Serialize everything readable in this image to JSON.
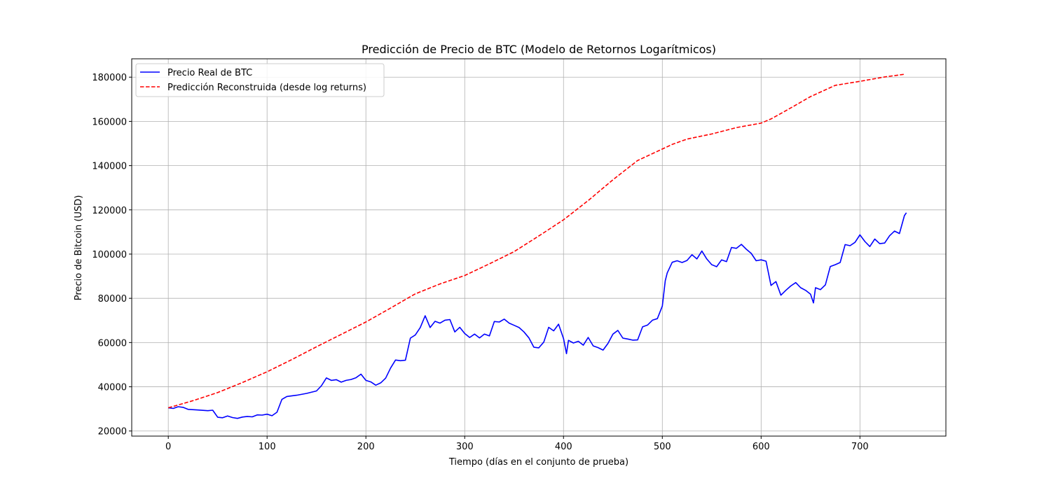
{
  "chart_data": {
    "type": "line",
    "title": "Predicción de Precio de BTC (Modelo de Retornos Logarítmicos)",
    "xlabel": "Tiempo (días en el conjunto de prueba)",
    "ylabel": "Precio de Bitcoin (USD)",
    "xlim": [
      -37,
      787
    ],
    "ylim": [
      17700,
      188300
    ],
    "xticks": [
      0,
      100,
      200,
      300,
      400,
      500,
      600,
      700
    ],
    "yticks": [
      20000,
      40000,
      60000,
      80000,
      100000,
      120000,
      140000,
      160000,
      180000
    ],
    "xtick_labels": [
      "0",
      "100",
      "200",
      "300",
      "400",
      "500",
      "600",
      "700"
    ],
    "ytick_labels": [
      "20000",
      "40000",
      "60000",
      "80000",
      "100000",
      "120000",
      "140000",
      "160000",
      "180000"
    ],
    "grid": true,
    "legend_position": "top-left",
    "series": [
      {
        "name": "Precio Real de BTC",
        "color": "#0000ff",
        "style": "solid",
        "x": [
          0,
          5,
          10,
          15,
          20,
          30,
          40,
          45,
          50,
          55,
          60,
          65,
          70,
          75,
          80,
          85,
          90,
          95,
          100,
          105,
          110,
          115,
          120,
          130,
          140,
          150,
          155,
          160,
          165,
          170,
          175,
          180,
          185,
          190,
          195,
          200,
          205,
          210,
          215,
          220,
          225,
          230,
          235,
          240,
          245,
          250,
          255,
          260,
          265,
          270,
          275,
          280,
          285,
          290,
          295,
          300,
          305,
          310,
          315,
          320,
          325,
          330,
          335,
          340,
          345,
          350,
          355,
          360,
          365,
          370,
          375,
          380,
          385,
          390,
          395,
          400,
          403,
          405,
          410,
          415,
          420,
          425,
          430,
          435,
          440,
          445,
          450,
          455,
          460,
          465,
          470,
          475,
          480,
          485,
          490,
          495,
          500,
          503,
          505,
          510,
          515,
          520,
          525,
          530,
          535,
          540,
          545,
          550,
          555,
          560,
          565,
          570,
          575,
          580,
          585,
          590,
          595,
          600,
          605,
          610,
          615,
          620,
          625,
          630,
          635,
          640,
          645,
          650,
          653,
          655,
          660,
          665,
          670,
          675,
          680,
          685,
          690,
          695,
          700,
          705,
          710,
          715,
          720,
          725,
          730,
          735,
          740,
          745,
          747
        ],
        "y": [
          30500,
          30200,
          31000,
          30700,
          29800,
          29500,
          29200,
          29400,
          26200,
          26000,
          26800,
          26100,
          25700,
          26300,
          26600,
          26400,
          27300,
          27200,
          27600,
          26900,
          28500,
          34300,
          35600,
          36200,
          37000,
          38100,
          40500,
          44000,
          42900,
          43200,
          42100,
          42900,
          43300,
          44100,
          45700,
          42900,
          42200,
          40700,
          41800,
          43900,
          48500,
          52100,
          51800,
          52000,
          62000,
          63400,
          66800,
          72100,
          66800,
          69600,
          68800,
          70100,
          70400,
          64800,
          66900,
          64100,
          62300,
          63800,
          62100,
          63800,
          63000,
          69500,
          69300,
          70600,
          68800,
          67800,
          66800,
          64800,
          62100,
          57900,
          57600,
          60200,
          66900,
          65300,
          68300,
          61800,
          55000,
          61000,
          59800,
          60600,
          58800,
          62300,
          58500,
          57700,
          56600,
          59600,
          63800,
          65500,
          62000,
          61600,
          61100,
          61200,
          67100,
          67900,
          70100,
          70800,
          76500,
          88000,
          91500,
          96300,
          97000,
          96200,
          97100,
          99700,
          97800,
          101400,
          97800,
          95200,
          94300,
          97400,
          96600,
          103000,
          102600,
          104400,
          102200,
          100300,
          97000,
          97400,
          96800,
          85800,
          87600,
          81400,
          83600,
          85600,
          87100,
          84800,
          83600,
          81900,
          77900,
          84800,
          83900,
          86100,
          94400,
          95200,
          96200,
          104300,
          103800,
          105300,
          108700,
          105700,
          103400,
          106800,
          104700,
          105000,
          108300,
          110400,
          109300,
          117400,
          118700
        ]
      },
      {
        "name": "Predicción Reconstruida (desde log returns)",
        "color": "#ff0000",
        "style": "dashed",
        "x": [
          0,
          25,
          50,
          75,
          100,
          125,
          150,
          175,
          200,
          225,
          250,
          275,
          300,
          325,
          350,
          375,
          400,
          425,
          450,
          475,
          500,
          510,
          525,
          550,
          575,
          600,
          610,
          625,
          650,
          675,
          700,
          725,
          745
        ],
        "y": [
          30500,
          33700,
          37400,
          41900,
          46800,
          52300,
          58100,
          63700,
          69300,
          75600,
          82000,
          86500,
          90300,
          95600,
          101100,
          108200,
          115500,
          124200,
          133600,
          142300,
          147500,
          149600,
          152000,
          154300,
          157200,
          159200,
          161100,
          164800,
          171200,
          176300,
          178100,
          180100,
          181300
        ]
      }
    ]
  }
}
